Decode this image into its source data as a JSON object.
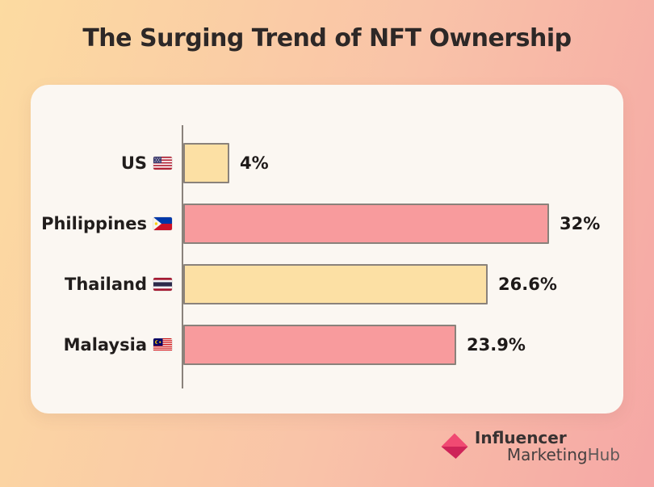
{
  "title": "The Surging Trend of NFT Ownership",
  "chart_data": {
    "type": "bar",
    "orientation": "horizontal",
    "title": "The Surging Trend of NFT Ownership",
    "unit": "%",
    "x_max": 32,
    "grid": false,
    "legend": "none",
    "categories": [
      "US",
      "Philippines",
      "Thailand",
      "Malaysia"
    ],
    "values": [
      4,
      32,
      26.6,
      23.9
    ],
    "rows": [
      {
        "label": "US",
        "flag_icon": "us-flag-icon",
        "value": 4,
        "display": "4%",
        "color": "yellow"
      },
      {
        "label": "Philippines",
        "flag_icon": "ph-flag-icon",
        "value": 32,
        "display": "32%",
        "color": "pink"
      },
      {
        "label": "Thailand",
        "flag_icon": "th-flag-icon",
        "value": 26.6,
        "display": "26.6%",
        "color": "yellow"
      },
      {
        "label": "Malaysia",
        "flag_icon": "my-flag-icon",
        "value": 23.9,
        "display": "23.9%",
        "color": "pink"
      }
    ],
    "bar_colors": {
      "yellow": "#FCE0A4",
      "pink": "#F89B9D"
    },
    "bar_border_color": "#8A827B"
  },
  "branding": {
    "logo_icon": "imh-arrow-logo-icon",
    "line1": "Influencer",
    "line2_part1": "Marketing",
    "line2_part2": "Hub"
  },
  "theme": {
    "background_gradient": [
      "#FCDBA1",
      "#F5A7A5"
    ],
    "card_background": "#FBF7F2",
    "title_color": "#2D2827",
    "text_color": "#211D1C",
    "axis_color": "#8A827B",
    "logo_pink_light": "#F04A72",
    "logo_pink_dark": "#CE2358"
  }
}
